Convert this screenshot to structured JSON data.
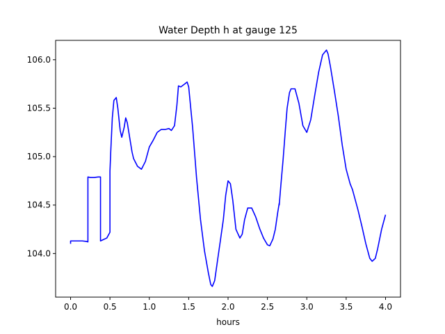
{
  "chart_data": {
    "type": "line",
    "title": "Water Depth h at gauge 125",
    "xlabel": "hours",
    "ylabel": "",
    "xlim": [
      -0.19,
      4.19
    ],
    "ylim": [
      103.55,
      106.2
    ],
    "xticks": [
      {
        "value": 0.0,
        "label": "0.0"
      },
      {
        "value": 0.5,
        "label": "0.5"
      },
      {
        "value": 1.0,
        "label": "1.0"
      },
      {
        "value": 1.5,
        "label": "1.5"
      },
      {
        "value": 2.0,
        "label": "2.0"
      },
      {
        "value": 2.5,
        "label": "2.5"
      },
      {
        "value": 3.0,
        "label": "3.0"
      },
      {
        "value": 3.5,
        "label": "3.5"
      },
      {
        "value": 4.0,
        "label": "4.0"
      }
    ],
    "yticks": [
      {
        "value": 104.0,
        "label": "104.0"
      },
      {
        "value": 104.5,
        "label": "104.5"
      },
      {
        "value": 105.0,
        "label": "105.0"
      },
      {
        "value": 105.5,
        "label": "105.5"
      },
      {
        "value": 106.0,
        "label": "106.0"
      }
    ],
    "grid": false,
    "series": [
      {
        "color": "#0000ff",
        "x": [
          0.0,
          0.0,
          0.05,
          0.1,
          0.15,
          0.2,
          0.22,
          0.22,
          0.25,
          0.3,
          0.35,
          0.38,
          0.38,
          0.42,
          0.46,
          0.5,
          0.5,
          0.51,
          0.53,
          0.55,
          0.58,
          0.6,
          0.63,
          0.65,
          0.68,
          0.7,
          0.72,
          0.75,
          0.78,
          0.8,
          0.85,
          0.9,
          0.95,
          1.0,
          1.05,
          1.1,
          1.15,
          1.2,
          1.25,
          1.28,
          1.32,
          1.35,
          1.37,
          1.4,
          1.45,
          1.48,
          1.5,
          1.55,
          1.6,
          1.65,
          1.7,
          1.75,
          1.78,
          1.8,
          1.83,
          1.87,
          1.9,
          1.94,
          1.97,
          2.0,
          2.03,
          2.06,
          2.1,
          2.15,
          2.18,
          2.21,
          2.25,
          2.3,
          2.35,
          2.4,
          2.45,
          2.5,
          2.53,
          2.57,
          2.6,
          2.63,
          2.65,
          2.65,
          2.67,
          2.7,
          2.73,
          2.75,
          2.78,
          2.8,
          2.85,
          2.9,
          2.95,
          3.0,
          3.05,
          3.1,
          3.15,
          3.2,
          3.25,
          3.27,
          3.3,
          3.35,
          3.4,
          3.45,
          3.5,
          3.55,
          3.58,
          3.6,
          3.65,
          3.7,
          3.75,
          3.8,
          3.83,
          3.87,
          3.9,
          3.95,
          4.0
        ],
        "y": [
          104.1,
          104.13,
          104.13,
          104.13,
          104.13,
          104.125,
          104.12,
          104.79,
          104.785,
          104.785,
          104.79,
          104.79,
          104.13,
          104.145,
          104.16,
          104.22,
          104.85,
          105.05,
          105.4,
          105.58,
          105.61,
          105.5,
          105.27,
          105.2,
          105.3,
          105.4,
          105.35,
          105.2,
          105.05,
          104.98,
          104.9,
          104.87,
          104.95,
          105.1,
          105.17,
          105.25,
          105.28,
          105.28,
          105.29,
          105.27,
          105.32,
          105.53,
          105.73,
          105.72,
          105.75,
          105.77,
          105.72,
          105.3,
          104.78,
          104.35,
          104.03,
          103.8,
          103.68,
          103.66,
          103.72,
          103.95,
          104.12,
          104.35,
          104.6,
          104.75,
          104.72,
          104.55,
          104.25,
          104.16,
          104.2,
          104.35,
          104.47,
          104.47,
          104.38,
          104.26,
          104.16,
          104.09,
          104.08,
          104.15,
          104.25,
          104.42,
          104.52,
          104.5,
          104.7,
          104.98,
          105.3,
          105.5,
          105.66,
          105.7,
          105.7,
          105.55,
          105.32,
          105.25,
          105.38,
          105.63,
          105.87,
          106.05,
          106.1,
          106.06,
          105.93,
          105.68,
          105.42,
          105.12,
          104.87,
          104.72,
          104.66,
          104.6,
          104.45,
          104.28,
          104.1,
          103.95,
          103.92,
          103.95,
          104.05,
          104.25,
          104.4
        ]
      }
    ]
  }
}
